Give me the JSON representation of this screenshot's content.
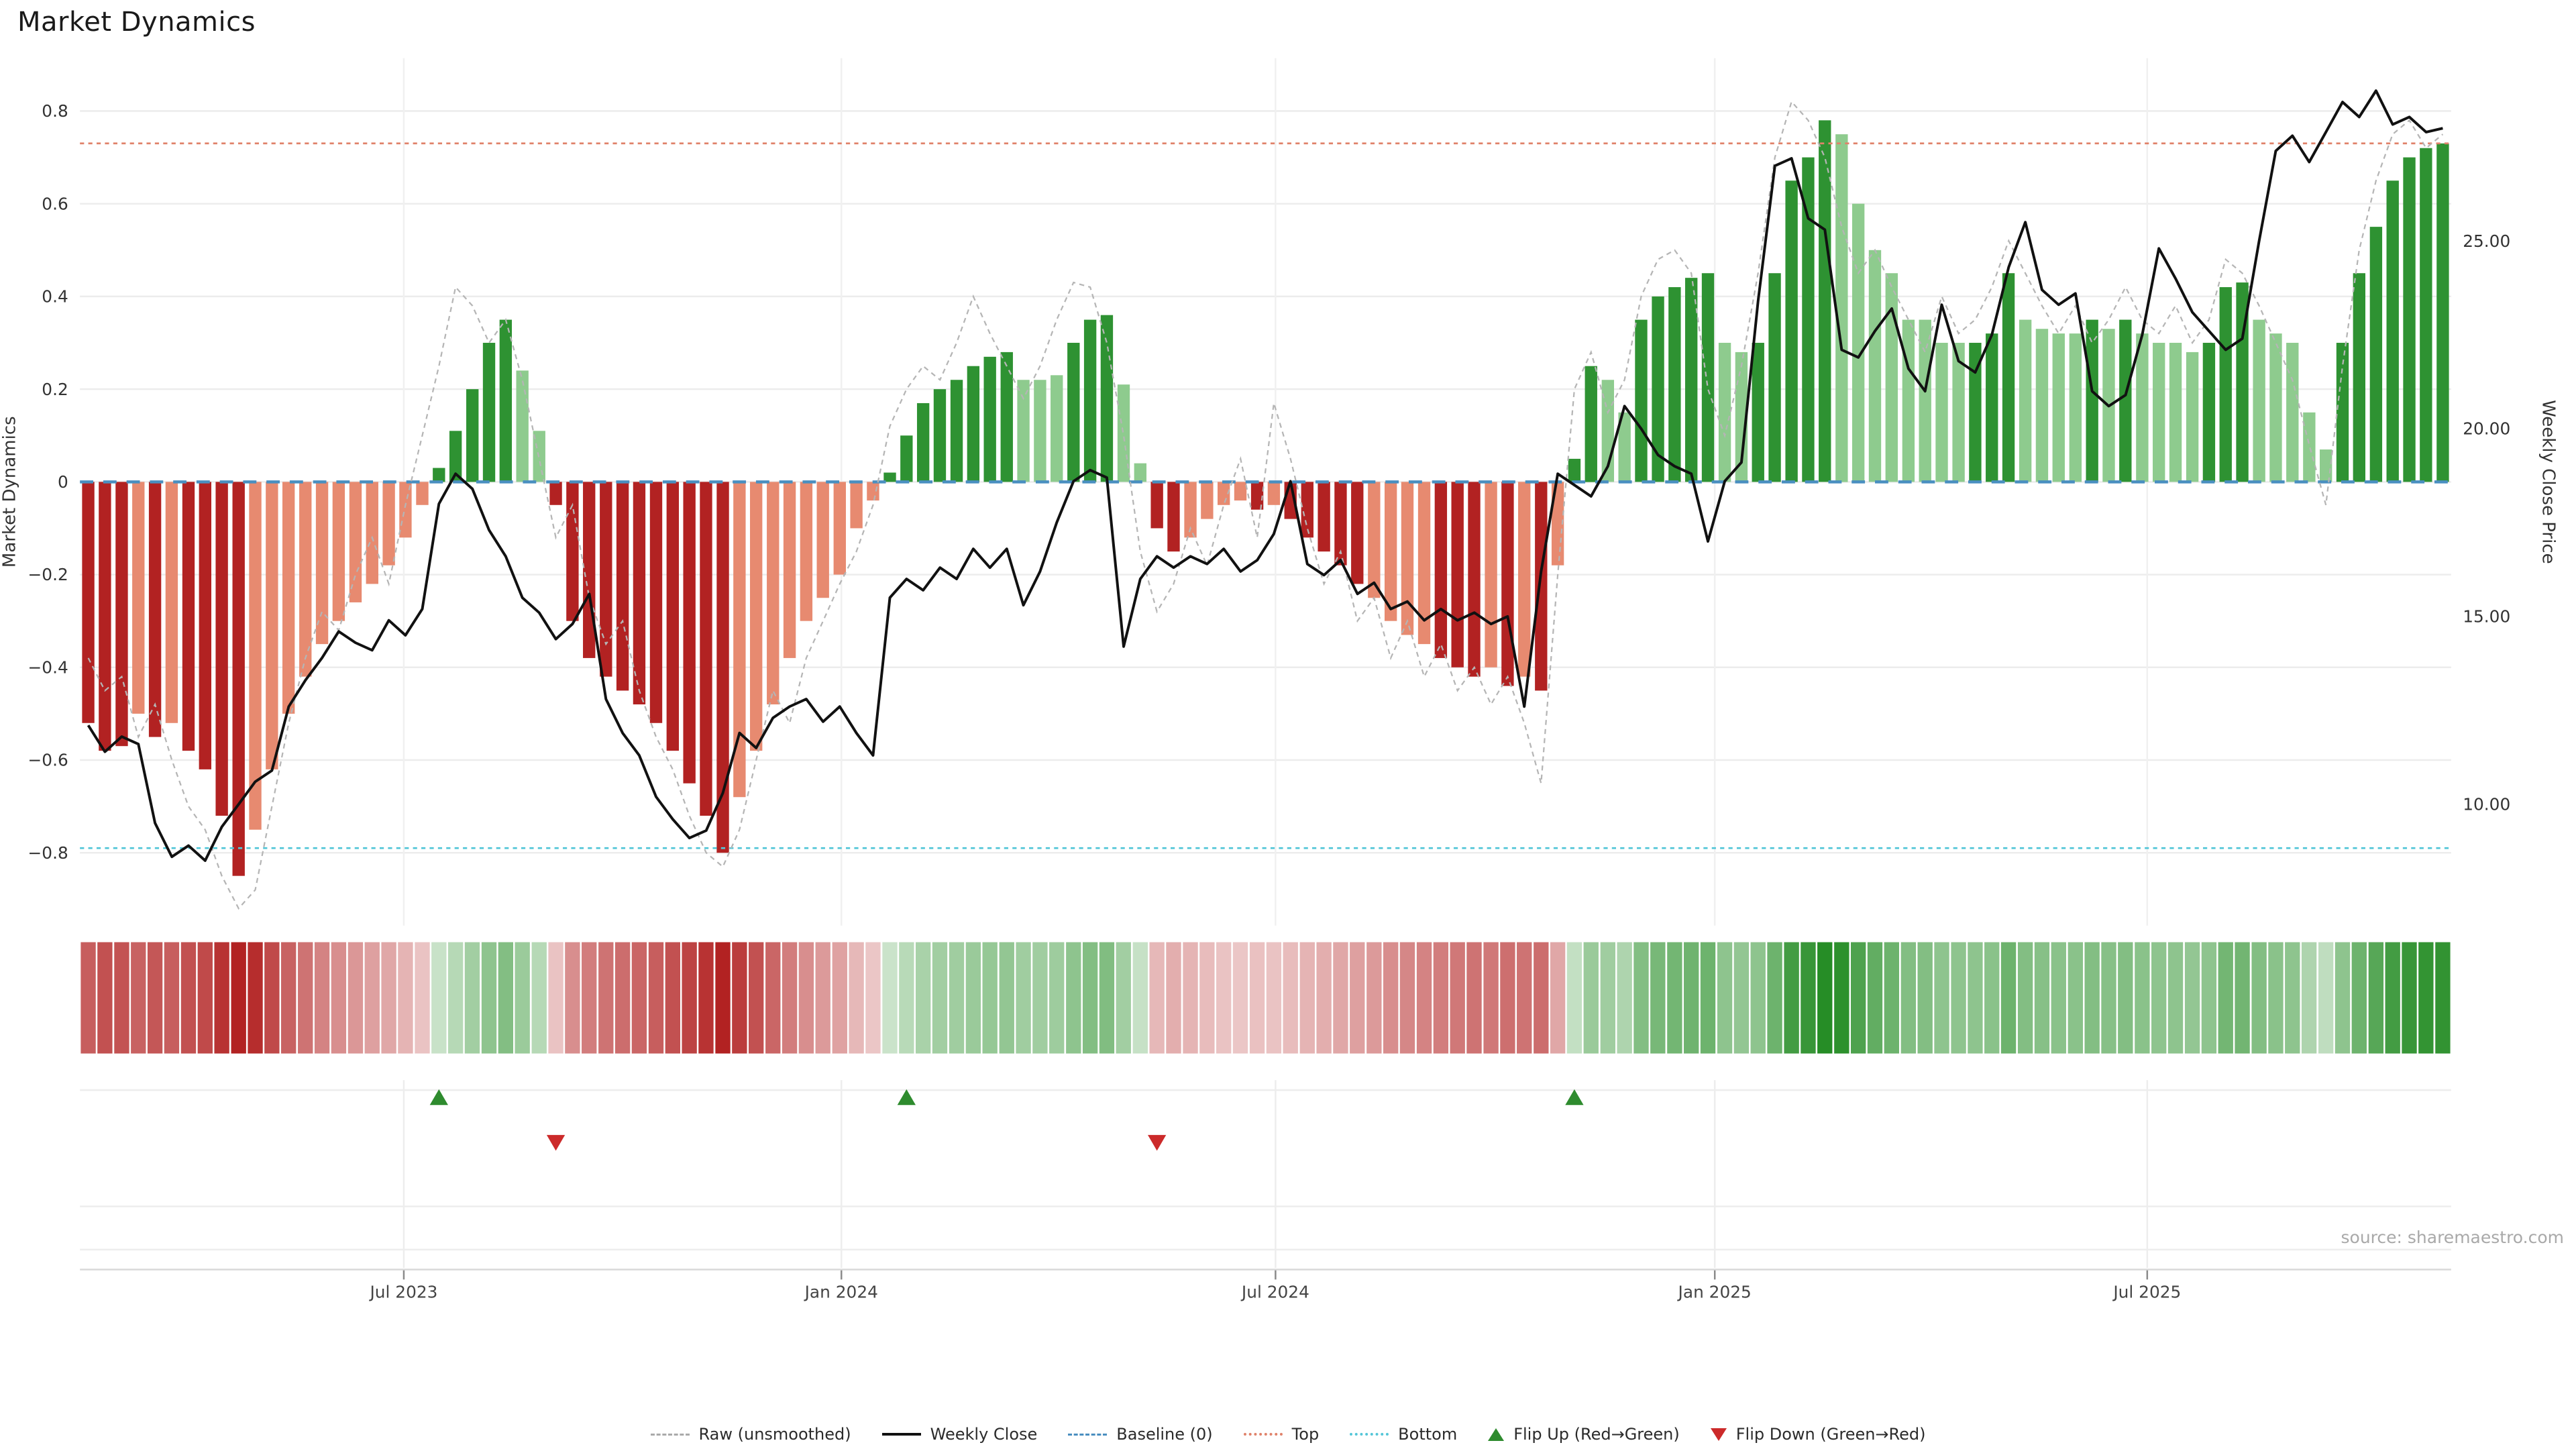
{
  "page": {
    "title": "Market Dynamics",
    "source": "source: sharemaestro.com"
  },
  "legend": {
    "items": [
      {
        "label": "Raw (unsmoothed)",
        "glyph": "dash",
        "color": "#aaaaaa"
      },
      {
        "label": "Weekly Close",
        "glyph": "solid",
        "color": "#111111"
      },
      {
        "label": "Baseline (0)",
        "glyph": "dash",
        "color": "#4a8fc0"
      },
      {
        "label": "Top",
        "glyph": "dot",
        "color": "#e0826a"
      },
      {
        "label": "Bottom",
        "glyph": "dot",
        "color": "#54c6d8"
      },
      {
        "label": "Flip Up (Red→Green)",
        "glyph": "tri-up",
        "color": "#2e8b2e"
      },
      {
        "label": "Flip Down (Green→Red)",
        "glyph": "tri-down",
        "color": "#cc2a2a"
      }
    ]
  },
  "chart_data": {
    "type": "bar",
    "title": "Market Dynamics",
    "weeks": 142,
    "left_axis": {
      "label": "Market Dynamics",
      "tick_values": [
        0.8,
        0.6,
        0.4,
        0.2,
        0,
        -0.2,
        -0.4,
        -0.6,
        -0.8
      ],
      "tick_labels": [
        "0.8",
        "0.6",
        "0.4",
        "0.2",
        "0",
        "−0.2",
        "−0.4",
        "−0.6",
        "−0.8"
      ],
      "range": [
        -0.95,
        0.91
      ]
    },
    "right_axis": {
      "label": "Weekly Close Price",
      "tick_values": [
        25,
        20,
        15,
        10
      ],
      "tick_labels": [
        "25.00",
        "20.00",
        "15.00",
        "10.00"
      ],
      "range": [
        6.4,
        29.9
      ]
    },
    "x_ticks": [
      {
        "pos": 18.9,
        "label": "Jul 2023"
      },
      {
        "pos": 45.1,
        "label": "Jan 2024"
      },
      {
        "pos": 71.1,
        "label": "Jul 2024"
      },
      {
        "pos": 97.4,
        "label": "Jan 2025"
      },
      {
        "pos": 123.3,
        "label": "Jul 2025"
      }
    ],
    "reference_lines": {
      "baseline": 0,
      "top": 0.73,
      "bottom": -0.79
    },
    "flip_up_weeks": [
      21,
      49,
      89
    ],
    "flip_down_weeks": [
      28,
      64
    ],
    "series": {
      "dynamics": [
        -0.52,
        -0.58,
        -0.57,
        -0.5,
        -0.55,
        -0.52,
        -0.58,
        -0.62,
        -0.72,
        -0.85,
        -0.75,
        -0.62,
        -0.5,
        -0.42,
        -0.35,
        -0.3,
        -0.26,
        -0.22,
        -0.18,
        -0.12,
        -0.05,
        0.03,
        0.11,
        0.2,
        0.3,
        0.35,
        0.24,
        0.11,
        -0.05,
        -0.3,
        -0.38,
        -0.42,
        -0.45,
        -0.48,
        -0.52,
        -0.58,
        -0.65,
        -0.72,
        -0.8,
        -0.68,
        -0.58,
        -0.48,
        -0.38,
        -0.3,
        -0.25,
        -0.2,
        -0.1,
        -0.04,
        0.02,
        0.1,
        0.17,
        0.2,
        0.22,
        0.25,
        0.27,
        0.28,
        0.22,
        0.22,
        0.23,
        0.3,
        0.35,
        0.36,
        0.21,
        0.04,
        -0.1,
        -0.15,
        -0.12,
        -0.08,
        -0.05,
        -0.04,
        -0.06,
        -0.05,
        -0.08,
        -0.12,
        -0.15,
        -0.18,
        -0.22,
        -0.25,
        -0.3,
        -0.33,
        -0.35,
        -0.38,
        -0.4,
        -0.42,
        -0.4,
        -0.44,
        -0.42,
        -0.45,
        -0.18,
        0.05,
        0.25,
        0.22,
        0.15,
        0.35,
        0.4,
        0.42,
        0.44,
        0.45,
        0.3,
        0.28,
        0.3,
        0.45,
        0.65,
        0.7,
        0.78,
        0.75,
        0.6,
        0.5,
        0.45,
        0.35,
        0.35,
        0.3,
        0.3,
        0.3,
        0.32,
        0.45,
        0.35,
        0.33,
        0.32,
        0.32,
        0.35,
        0.33,
        0.35,
        0.32,
        0.3,
        0.3,
        0.28,
        0.3,
        0.42,
        0.43,
        0.35,
        0.32,
        0.3,
        0.15,
        0.07,
        0.3,
        0.45,
        0.55,
        0.65,
        0.7,
        0.72,
        0.73
      ],
      "dynamics_shade": [
        "d",
        "d",
        "d",
        "l",
        "d",
        "l",
        "d",
        "d",
        "d",
        "d",
        "l",
        "l",
        "l",
        "l",
        "l",
        "l",
        "l",
        "l",
        "l",
        "l",
        "l",
        "d",
        "d",
        "d",
        "d",
        "d",
        "l",
        "l",
        "d",
        "d",
        "d",
        "d",
        "d",
        "d",
        "d",
        "d",
        "d",
        "d",
        "d",
        "l",
        "l",
        "l",
        "l",
        "l",
        "l",
        "l",
        "l",
        "l",
        "d",
        "d",
        "d",
        "d",
        "d",
        "d",
        "d",
        "d",
        "l",
        "l",
        "l",
        "d",
        "d",
        "d",
        "l",
        "l",
        "d",
        "d",
        "l",
        "l",
        "l",
        "l",
        "d",
        "l",
        "d",
        "d",
        "d",
        "d",
        "d",
        "l",
        "l",
        "l",
        "l",
        "d",
        "d",
        "d",
        "l",
        "d",
        "l",
        "d",
        "l",
        "d",
        "d",
        "l",
        "l",
        "d",
        "d",
        "d",
        "d",
        "d",
        "l",
        "l",
        "d",
        "d",
        "d",
        "d",
        "d",
        "l",
        "l",
        "l",
        "l",
        "l",
        "l",
        "l",
        "l",
        "d",
        "d",
        "d",
        "l",
        "l",
        "l",
        "l",
        "d",
        "l",
        "d",
        "l",
        "l",
        "l",
        "l",
        "d",
        "d",
        "d",
        "l",
        "l",
        "l",
        "l",
        "l",
        "d",
        "d",
        "d",
        "d",
        "d",
        "d",
        "d"
      ],
      "raw": [
        -0.38,
        -0.45,
        -0.42,
        -0.55,
        -0.48,
        -0.6,
        -0.7,
        -0.75,
        -0.85,
        -0.92,
        -0.88,
        -0.7,
        -0.52,
        -0.38,
        -0.28,
        -0.32,
        -0.2,
        -0.12,
        -0.22,
        -0.05,
        0.1,
        0.25,
        0.42,
        0.38,
        0.3,
        0.35,
        0.22,
        0.05,
        -0.12,
        -0.05,
        -0.25,
        -0.35,
        -0.3,
        -0.45,
        -0.55,
        -0.62,
        -0.72,
        -0.8,
        -0.83,
        -0.75,
        -0.6,
        -0.45,
        -0.52,
        -0.38,
        -0.3,
        -0.22,
        -0.15,
        -0.05,
        0.12,
        0.2,
        0.25,
        0.22,
        0.3,
        0.4,
        0.32,
        0.25,
        0.18,
        0.25,
        0.35,
        0.43,
        0.42,
        0.3,
        0.1,
        -0.15,
        -0.28,
        -0.22,
        -0.1,
        -0.18,
        -0.05,
        0.05,
        -0.12,
        0.17,
        0.05,
        -0.1,
        -0.22,
        -0.15,
        -0.3,
        -0.25,
        -0.38,
        -0.3,
        -0.42,
        -0.35,
        -0.45,
        -0.4,
        -0.48,
        -0.42,
        -0.52,
        -0.65,
        -0.2,
        0.2,
        0.28,
        0.15,
        0.22,
        0.4,
        0.48,
        0.5,
        0.45,
        0.2,
        0.1,
        0.25,
        0.45,
        0.7,
        0.82,
        0.78,
        0.7,
        0.55,
        0.45,
        0.5,
        0.42,
        0.35,
        0.28,
        0.4,
        0.32,
        0.35,
        0.42,
        0.52,
        0.45,
        0.38,
        0.32,
        0.38,
        0.3,
        0.35,
        0.42,
        0.35,
        0.32,
        0.38,
        0.3,
        0.35,
        0.48,
        0.45,
        0.38,
        0.3,
        0.22,
        0.08,
        -0.05,
        0.25,
        0.5,
        0.65,
        0.75,
        0.78,
        0.72,
        0.75
      ],
      "weekly_close": [
        12.1,
        11.4,
        11.8,
        11.6,
        9.5,
        8.6,
        8.9,
        8.5,
        9.4,
        10.0,
        10.6,
        10.9,
        12.6,
        13.3,
        13.9,
        14.6,
        14.3,
        14.1,
        14.9,
        14.5,
        15.2,
        18.0,
        18.8,
        18.4,
        17.3,
        16.6,
        15.5,
        15.1,
        14.4,
        14.8,
        15.6,
        12.8,
        11.9,
        11.3,
        10.2,
        9.6,
        9.1,
        9.3,
        10.3,
        11.9,
        11.5,
        12.3,
        12.6,
        12.8,
        12.2,
        12.6,
        11.9,
        11.3,
        15.5,
        16.0,
        15.7,
        16.3,
        16.0,
        16.8,
        16.3,
        16.8,
        15.3,
        16.2,
        17.5,
        18.6,
        18.9,
        18.7,
        14.2,
        16.0,
        16.6,
        16.3,
        16.6,
        16.4,
        16.8,
        16.2,
        16.5,
        17.2,
        18.6,
        16.4,
        16.1,
        16.5,
        15.6,
        15.9,
        15.2,
        15.4,
        14.9,
        15.2,
        14.9,
        15.1,
        14.8,
        15.0,
        12.6,
        16.2,
        18.8,
        18.5,
        18.2,
        19.0,
        20.6,
        20.0,
        19.3,
        19.0,
        18.8,
        17.0,
        18.6,
        19.1,
        23.4,
        27.0,
        27.2,
        25.6,
        25.3,
        22.1,
        21.9,
        22.6,
        23.2,
        21.6,
        21.0,
        23.3,
        21.8,
        21.5,
        22.5,
        24.3,
        25.5,
        23.7,
        23.3,
        23.6,
        21.0,
        20.6,
        20.9,
        22.5,
        24.8,
        24.0,
        23.1,
        22.6,
        22.1,
        22.4,
        25.0,
        27.4,
        27.8,
        27.1,
        27.9,
        28.7,
        28.3,
        29.0,
        28.1,
        28.3,
        27.9,
        28.0
      ]
    },
    "colors": {
      "bar_neg_dark": "#b22222",
      "bar_neg_light": "#e78a70",
      "bar_pos_dark": "#2e9232",
      "bar_pos_light": "#8ecb8e",
      "weekly_close": "#111111",
      "raw": "#b5b5b5",
      "baseline": "#4a8fc0",
      "top": "#e0826a",
      "bottom": "#54c6d8",
      "flip_up": "#2e8b2e",
      "flip_down": "#cc2a2a",
      "grid": "#ececec",
      "heat_pos": "34,139,34",
      "heat_neg": "178,34,34"
    }
  }
}
